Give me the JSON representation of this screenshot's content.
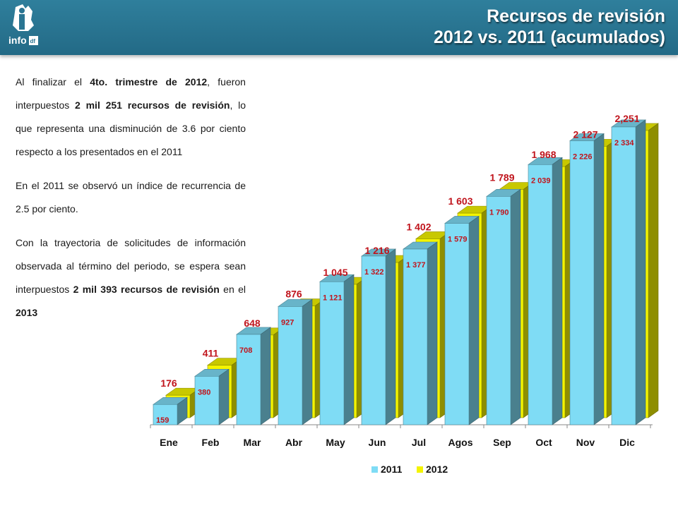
{
  "header": {
    "title_line1": "Recursos de revisión",
    "title_line2": "2012 vs. 2011 (acumulados)"
  },
  "logo": {
    "text": "info",
    "suffix": "df"
  },
  "text": {
    "p1": {
      "a": "Al finalizar el ",
      "b": "4to. trimestre de 2012",
      "c": ", fueron interpuestos ",
      "d": "2 mil 251 recursos de revisión",
      "e": ", lo que representa una disminución de 3.6 por ciento respecto a los presentados en el 2011"
    },
    "p2": "En el 2011 se observó un índice de recurrencia de 2.5 por ciento.",
    "p3": {
      "a": "Con la trayectoria de solicitudes de información observada al término del periodo, se espera sean interpuestos ",
      "b": "2 mil 393 recursos de revisión",
      "c": " en el ",
      "d": "2013"
    }
  },
  "chart_data": {
    "type": "bar",
    "categories": [
      "Ene",
      "Feb",
      "Mar",
      "Abr",
      "May",
      "Jun",
      "Jul",
      "Agos",
      "Sep",
      "Oct",
      "Nov",
      "Dic"
    ],
    "series": [
      {
        "name": "2011",
        "color": "#7fdcf5",
        "values": [
          159,
          380,
          708,
          927,
          1121,
          1322,
          1377,
          1579,
          1790,
          2039,
          2226,
          2334
        ],
        "labels": [
          "159",
          "380",
          "708",
          "927",
          "1 121",
          "1 322",
          "1 377",
          "1 579",
          "1 790",
          "2 039",
          "2 226",
          "2 334"
        ]
      },
      {
        "name": "2012",
        "color": "#f4f400",
        "values": [
          176,
          411,
          648,
          876,
          1045,
          1216,
          1402,
          1603,
          1789,
          1968,
          2127,
          2251
        ],
        "labels": [
          "176",
          "411",
          "648",
          "876",
          "1 045",
          "1 216",
          "1 402",
          "1 603",
          "1 789",
          "1 968",
          "2 127",
          "2,251"
        ]
      }
    ],
    "ylim": [
      0,
      2400
    ],
    "grid": false,
    "legend": "bottom",
    "label_color": "#c0141c"
  }
}
